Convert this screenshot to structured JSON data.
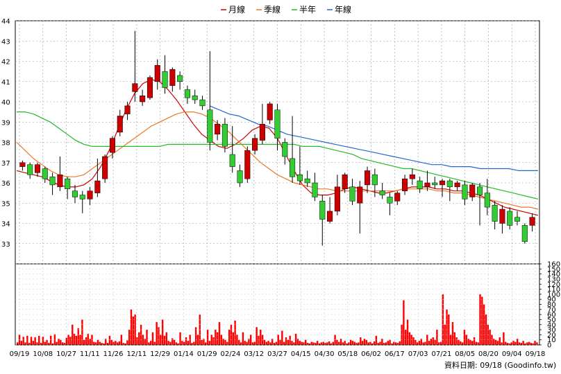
{
  "chart_data": {
    "type": "line",
    "legend": [
      {
        "name": "月線",
        "color": "#cc0000"
      },
      {
        "name": "季線",
        "color": "#ee7722"
      },
      {
        "name": "半年",
        "color": "#22bb22"
      },
      {
        "name": "年線",
        "color": "#2266cc"
      }
    ],
    "legend_placement": "top-center",
    "price_axis": {
      "ylim": [
        32,
        44
      ],
      "ticks": [
        33,
        34,
        35,
        36,
        37,
        38,
        39,
        40,
        41,
        42,
        43,
        44
      ],
      "position": "left",
      "grid": true
    },
    "volume_axis": {
      "ylim": [
        0,
        160
      ],
      "ticks": [
        0,
        10,
        20,
        30,
        40,
        50,
        60,
        70,
        80,
        90,
        100,
        110,
        120,
        130,
        140,
        150,
        160
      ],
      "position": "right"
    },
    "x_tick_labels": [
      "09/19",
      "10/08",
      "10/27",
      "11/11",
      "11/26",
      "12/11",
      "12/29",
      "01/14",
      "01/29",
      "02/24",
      "03/12",
      "03/27",
      "04/15",
      "04/30",
      "05/18",
      "06/02",
      "06/17",
      "07/03",
      "07/21",
      "08/05",
      "08/20",
      "09/04",
      "09/18"
    ],
    "footer": "資料日期: 09/18 (Goodinfo.tw)",
    "candle_colors": {
      "up": "#cc0000",
      "down": "#33cc33"
    },
    "volume_color": "#ff0000",
    "series": [
      {
        "name": "月線",
        "color": "#cc0000",
        "values": [
          36.6,
          36.5,
          36.4,
          36.3,
          36.1,
          35.9,
          35.8,
          35.8,
          35.9,
          36.2,
          36.8,
          37.6,
          38.6,
          39.6,
          40.4,
          40.9,
          41.1,
          41.0,
          40.6,
          40.1,
          39.5,
          38.9,
          38.4,
          38.1,
          37.8,
          37.7,
          37.9,
          38.2,
          38.6,
          38.8,
          38.7,
          38.2,
          37.4,
          36.6,
          35.9,
          35.5,
          35.4,
          35.4,
          35.5,
          35.7,
          35.8,
          35.7,
          35.6,
          35.5,
          35.5,
          35.6,
          35.7,
          35.8,
          35.8,
          35.8,
          35.7,
          35.7,
          35.6,
          35.6,
          35.5,
          35.4,
          35.2,
          35.0,
          34.8,
          34.7,
          34.6,
          34.5,
          34.4
        ]
      },
      {
        "name": "季線",
        "color": "#ee7722",
        "values": [
          38.0,
          37.6,
          37.2,
          36.9,
          36.6,
          36.4,
          36.3,
          36.3,
          36.4,
          36.7,
          37.0,
          37.3,
          37.6,
          37.9,
          38.2,
          38.5,
          38.8,
          39.0,
          39.2,
          39.4,
          39.5,
          39.5,
          39.4,
          39.2,
          38.9,
          38.6,
          38.2,
          37.8,
          37.4,
          37.0,
          36.7,
          36.4,
          36.2,
          36.0,
          35.9,
          35.8,
          35.7,
          35.7,
          35.6,
          35.6,
          35.6,
          35.6,
          35.6,
          35.6,
          35.6,
          35.6,
          35.7,
          35.7,
          35.7,
          35.7,
          35.6,
          35.6,
          35.5,
          35.5,
          35.4,
          35.3,
          35.2,
          35.1,
          35.0,
          34.9,
          34.8,
          34.8,
          34.7
        ]
      },
      {
        "name": "半年",
        "color": "#22bb22",
        "values": [
          39.5,
          39.5,
          39.4,
          39.2,
          39.0,
          38.7,
          38.4,
          38.1,
          37.9,
          37.8,
          37.8,
          37.8,
          37.8,
          37.8,
          37.8,
          37.8,
          37.8,
          37.8,
          37.9,
          37.9,
          37.9,
          37.9,
          37.9,
          37.9,
          37.9,
          37.9,
          37.9,
          37.9,
          37.9,
          37.9,
          37.9,
          37.9,
          37.9,
          37.9,
          37.8,
          37.8,
          37.8,
          37.7,
          37.6,
          37.5,
          37.4,
          37.2,
          37.1,
          37.0,
          36.9,
          36.8,
          36.7,
          36.7,
          36.6,
          36.5,
          36.4,
          36.3,
          36.2,
          36.1,
          36.0,
          35.9,
          35.8,
          35.7,
          35.6,
          35.5,
          35.4,
          35.3,
          35.2
        ]
      },
      {
        "name": "年線",
        "color": "#2266cc",
        "values": [
          null,
          null,
          null,
          null,
          null,
          null,
          null,
          null,
          null,
          null,
          null,
          null,
          null,
          null,
          null,
          null,
          null,
          null,
          null,
          null,
          39.8,
          39.6,
          39.4,
          39.3,
          39.1,
          38.9,
          38.8,
          38.6,
          38.4,
          38.3,
          38.2,
          38.1,
          38.0,
          37.9,
          37.8,
          37.7,
          37.6,
          37.5,
          37.4,
          37.3,
          37.2,
          37.1,
          37.0,
          36.9,
          36.9,
          36.8,
          36.8,
          36.8,
          36.7,
          36.7,
          36.7,
          36.7,
          36.6,
          36.6,
          36.6
        ]
      }
    ],
    "candles": [
      {
        "o": 36.8,
        "c": 37.0,
        "h": 37.1,
        "l": 36.6
      },
      {
        "o": 36.9,
        "c": 36.4,
        "h": 37.0,
        "l": 36.2
      },
      {
        "o": 36.5,
        "c": 36.9,
        "h": 37.0,
        "l": 36.3
      },
      {
        "o": 36.7,
        "c": 36.2,
        "h": 36.8,
        "l": 36.0
      },
      {
        "o": 36.3,
        "c": 35.9,
        "h": 36.5,
        "l": 35.4
      },
      {
        "o": 35.8,
        "c": 36.4,
        "h": 37.3,
        "l": 35.6
      },
      {
        "o": 36.2,
        "c": 35.7,
        "h": 36.3,
        "l": 35.2
      },
      {
        "o": 35.6,
        "c": 35.3,
        "h": 35.9,
        "l": 35.0
      },
      {
        "o": 35.4,
        "c": 35.2,
        "h": 35.6,
        "l": 34.5
      },
      {
        "o": 35.2,
        "c": 35.6,
        "h": 35.8,
        "l": 34.9
      },
      {
        "o": 35.5,
        "c": 36.1,
        "h": 37.2,
        "l": 35.3
      },
      {
        "o": 36.2,
        "c": 37.3,
        "h": 37.4,
        "l": 36.0
      },
      {
        "o": 37.5,
        "c": 38.2,
        "h": 38.3,
        "l": 37.2
      },
      {
        "o": 38.5,
        "c": 39.3,
        "h": 39.6,
        "l": 38.3
      },
      {
        "o": 39.4,
        "c": 39.8,
        "h": 40.0,
        "l": 39.1
      },
      {
        "o": 40.5,
        "c": 40.9,
        "h": 43.5,
        "l": 40.0
      },
      {
        "o": 40.0,
        "c": 40.3,
        "h": 40.6,
        "l": 39.8
      },
      {
        "o": 40.2,
        "c": 41.2,
        "h": 41.3,
        "l": 40.1
      },
      {
        "o": 41.0,
        "c": 41.8,
        "h": 42.1,
        "l": 40.6
      },
      {
        "o": 41.5,
        "c": 40.7,
        "h": 42.3,
        "l": 40.4
      },
      {
        "o": 40.8,
        "c": 41.6,
        "h": 41.7,
        "l": 40.5
      },
      {
        "o": 41.3,
        "c": 41.0,
        "h": 41.5,
        "l": 40.6
      },
      {
        "o": 40.6,
        "c": 40.2,
        "h": 40.8,
        "l": 39.9
      },
      {
        "o": 40.3,
        "c": 40.1,
        "h": 40.6,
        "l": 39.9
      },
      {
        "o": 40.1,
        "c": 39.8,
        "h": 40.3,
        "l": 39.6
      },
      {
        "o": 39.6,
        "c": 38.0,
        "h": 42.5,
        "l": 37.6
      },
      {
        "o": 38.4,
        "c": 38.9,
        "h": 39.1,
        "l": 38.1
      },
      {
        "o": 38.9,
        "c": 37.8,
        "h": 39.2,
        "l": 37.5
      },
      {
        "o": 37.4,
        "c": 36.8,
        "h": 38.8,
        "l": 36.5
      },
      {
        "o": 36.6,
        "c": 36.0,
        "h": 36.9,
        "l": 35.8
      },
      {
        "o": 36.2,
        "c": 37.6,
        "h": 37.8,
        "l": 36.0
      },
      {
        "o": 37.6,
        "c": 38.2,
        "h": 38.4,
        "l": 37.4
      },
      {
        "o": 38.1,
        "c": 38.9,
        "h": 39.9,
        "l": 37.9
      },
      {
        "o": 39.1,
        "c": 39.9,
        "h": 40.0,
        "l": 38.9
      },
      {
        "o": 39.6,
        "c": 38.2,
        "h": 39.9,
        "l": 37.6
      },
      {
        "o": 38.0,
        "c": 37.3,
        "h": 38.2,
        "l": 36.9
      },
      {
        "o": 37.2,
        "c": 36.3,
        "h": 39.3,
        "l": 36.0
      },
      {
        "o": 36.4,
        "c": 36.1,
        "h": 37.8,
        "l": 35.9
      },
      {
        "o": 36.2,
        "c": 36.0,
        "h": 36.6,
        "l": 35.8
      },
      {
        "o": 36.0,
        "c": 35.3,
        "h": 36.5,
        "l": 35.1
      },
      {
        "o": 35.1,
        "c": 34.2,
        "h": 35.4,
        "l": 32.9
      },
      {
        "o": 34.1,
        "c": 34.6,
        "h": 35.3,
        "l": 34.0
      },
      {
        "o": 34.6,
        "c": 35.8,
        "h": 36.4,
        "l": 34.4
      },
      {
        "o": 35.7,
        "c": 36.4,
        "h": 36.5,
        "l": 35.5
      },
      {
        "o": 35.8,
        "c": 35.1,
        "h": 36.2,
        "l": 34.9
      },
      {
        "o": 35.0,
        "c": 35.8,
        "h": 36.1,
        "l": 33.5
      },
      {
        "o": 35.9,
        "c": 36.6,
        "h": 36.8,
        "l": 35.5
      },
      {
        "o": 36.4,
        "c": 35.9,
        "h": 36.7,
        "l": 35.3
      },
      {
        "o": 35.6,
        "c": 35.4,
        "h": 36.0,
        "l": 35.2
      },
      {
        "o": 35.3,
        "c": 35.0,
        "h": 35.5,
        "l": 34.4
      },
      {
        "o": 35.1,
        "c": 35.5,
        "h": 35.6,
        "l": 34.9
      },
      {
        "o": 35.6,
        "c": 36.2,
        "h": 36.4,
        "l": 35.4
      },
      {
        "o": 36.2,
        "c": 36.4,
        "h": 36.7,
        "l": 35.9
      },
      {
        "o": 36.1,
        "c": 35.7,
        "h": 36.3,
        "l": 35.5
      },
      {
        "o": 35.8,
        "c": 36.0,
        "h": 36.6,
        "l": 35.6
      },
      {
        "o": 36.0,
        "c": 35.9,
        "h": 36.3,
        "l": 35.7
      },
      {
        "o": 35.9,
        "c": 36.1,
        "h": 36.2,
        "l": 35.3
      },
      {
        "o": 36.1,
        "c": 35.8,
        "h": 36.2,
        "l": 35.1
      },
      {
        "o": 35.8,
        "c": 36.0,
        "h": 36.1,
        "l": 35.6
      },
      {
        "o": 35.9,
        "c": 35.2,
        "h": 36.1,
        "l": 34.9
      },
      {
        "o": 35.3,
        "c": 35.9,
        "h": 36.0,
        "l": 35.1
      },
      {
        "o": 35.8,
        "c": 35.4,
        "h": 36.0,
        "l": 33.9
      },
      {
        "o": 35.5,
        "c": 34.8,
        "h": 36.2,
        "l": 34.4
      },
      {
        "o": 34.9,
        "c": 34.1,
        "h": 35.1,
        "l": 33.7
      },
      {
        "o": 34.0,
        "c": 34.7,
        "h": 34.9,
        "l": 33.5
      },
      {
        "o": 34.6,
        "c": 33.9,
        "h": 34.8,
        "l": 33.7
      },
      {
        "o": 34.3,
        "c": 34.1,
        "h": 34.6,
        "l": 33.9
      },
      {
        "o": 33.9,
        "c": 33.1,
        "h": 34.0,
        "l": 33.0
      },
      {
        "o": 33.9,
        "c": 34.3,
        "h": 34.5,
        "l": 33.6
      }
    ],
    "volume": [
      5,
      20,
      8,
      16,
      5,
      18,
      4,
      16,
      8,
      15,
      5,
      18,
      4,
      16,
      6,
      10,
      4,
      18,
      3,
      21,
      6,
      12,
      10,
      5,
      4,
      14,
      20,
      16,
      40,
      22,
      18,
      33,
      20,
      50,
      10,
      15,
      22,
      12,
      20,
      6,
      5,
      10,
      6,
      4,
      3,
      12,
      4,
      18,
      10,
      6,
      8,
      5,
      7,
      20,
      4,
      3,
      9,
      30,
      70,
      56,
      60,
      15,
      25,
      40,
      20,
      12,
      30,
      5,
      8,
      25,
      6,
      45,
      35,
      20,
      50,
      18,
      25,
      8,
      6,
      13,
      10,
      5,
      3,
      25,
      8,
      6,
      15,
      8,
      20,
      4,
      6,
      35,
      20,
      60,
      10,
      12,
      5,
      30,
      8,
      20,
      15,
      30,
      25,
      45,
      20,
      12,
      10,
      6,
      30,
      40,
      25,
      48,
      20,
      10,
      5,
      25,
      8,
      6,
      12,
      20,
      5,
      6,
      35,
      18,
      30,
      20,
      10,
      6,
      8,
      5,
      12,
      4,
      6,
      20,
      10,
      28,
      6,
      15,
      10,
      18,
      8,
      5,
      22,
      12,
      8,
      6,
      5,
      10,
      4,
      3,
      6,
      5,
      4,
      8,
      3,
      5,
      6,
      4,
      5,
      7,
      3,
      6,
      20,
      10,
      6,
      12,
      5,
      8,
      3,
      5,
      10,
      8,
      6,
      4,
      5,
      15,
      8,
      12,
      10,
      5,
      6,
      3,
      7,
      18,
      4,
      6,
      12,
      4,
      5,
      8,
      10,
      3,
      6,
      5,
      4,
      7,
      40,
      88,
      30,
      50,
      25,
      20,
      15,
      10,
      5,
      8,
      12,
      5,
      6,
      20,
      8,
      12,
      15,
      10,
      30,
      5,
      6,
      100,
      40,
      70,
      60,
      20,
      45,
      25,
      15,
      10,
      7,
      5,
      30,
      20,
      12,
      10,
      8,
      15,
      6,
      5,
      100,
      95,
      80,
      60,
      40,
      30,
      20,
      12,
      10,
      8,
      15,
      5,
      25,
      6,
      4,
      3,
      5,
      8,
      6,
      12,
      5,
      4,
      8,
      3,
      5,
      6,
      4,
      3,
      8,
      5
    ]
  }
}
